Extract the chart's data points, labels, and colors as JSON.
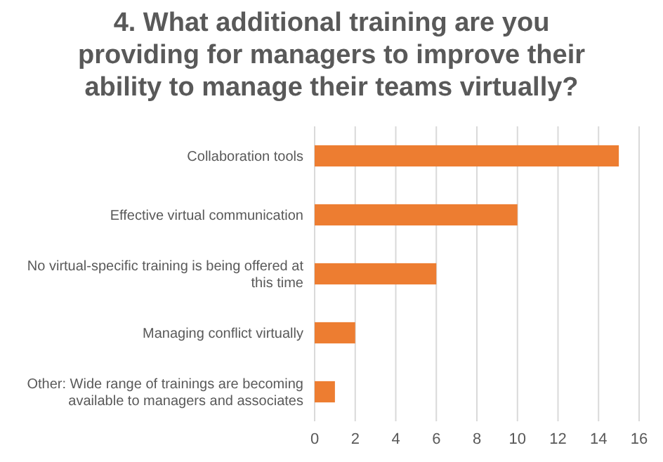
{
  "chart_data": {
    "type": "bar",
    "orientation": "horizontal",
    "title": "4. What additional training are you providing for managers to improve their ability to manage their teams virtually?",
    "categories": [
      "Collaboration tools",
      "Effective virtual communication",
      "No virtual-specific training is being offered at this time",
      "Managing conflict virtually",
      "Other: Wide range of trainings are becoming available to managers and associates"
    ],
    "values": [
      15,
      10,
      6,
      2,
      1
    ],
    "color": "#ed7d31",
    "xlim": [
      0,
      16
    ],
    "xticks": [
      0,
      2,
      4,
      6,
      8,
      10,
      12,
      14,
      16
    ],
    "grid": "x"
  }
}
